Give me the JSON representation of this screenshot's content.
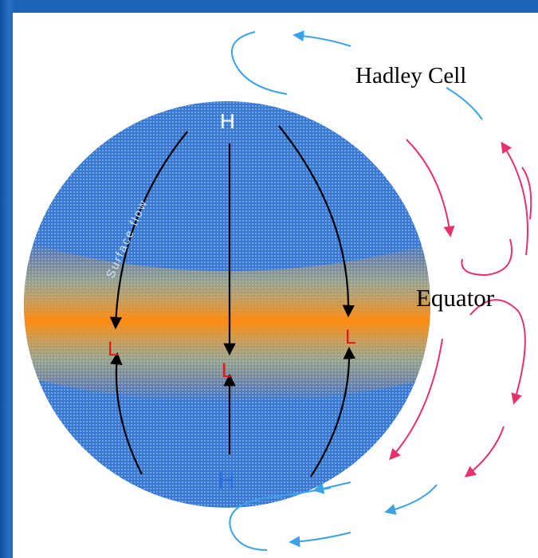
{
  "labels": {
    "hadley_cell": "Hadley Cell",
    "equator": "Equator",
    "surface_flow": "Surface flow",
    "high_top": "H",
    "high_bottom": "H",
    "low_left": "L",
    "low_center": "L",
    "low_right": "L"
  },
  "colors": {
    "background": "#1c64b8",
    "globe_blue": "#3a78d2",
    "equator_band": "#ff8a10",
    "upper_flow": "#3aa2e6",
    "lower_flow": "#e8316a",
    "high_label": "#ffffff",
    "high_label_bottom": "#2a6fe0",
    "low_label": "#e01818",
    "arrows": "#000000"
  }
}
